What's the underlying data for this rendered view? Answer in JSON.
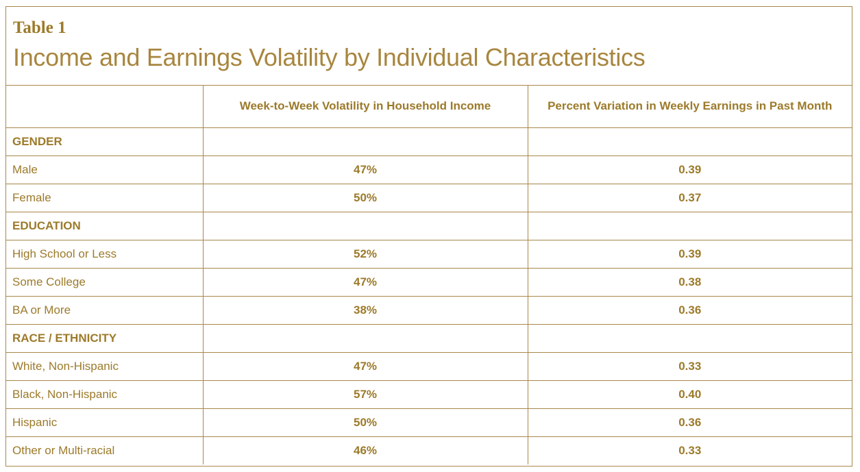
{
  "table_label": "Table 1",
  "title": "Income and Earnings Volatility by Individual Characteristics",
  "columns": {
    "col0": "",
    "col1": "Week-to-Week Volatility in Household Income",
    "col2": "Percent Variation in Weekly Earnings in Past Month"
  },
  "sections": [
    {
      "name": "GENDER",
      "rows": [
        {
          "label": "Male",
          "volatility": "47%",
          "variation": "0.39"
        },
        {
          "label": "Female",
          "volatility": "50%",
          "variation": "0.37"
        }
      ]
    },
    {
      "name": "EDUCATION",
      "rows": [
        {
          "label": "High School or Less",
          "volatility": "52%",
          "variation": "0.39"
        },
        {
          "label": "Some College",
          "volatility": "47%",
          "variation": "0.38"
        },
        {
          "label": "BA or More",
          "volatility": "38%",
          "variation": "0.36"
        }
      ]
    },
    {
      "name": "RACE / ETHNICITY",
      "rows": [
        {
          "label": "White, Non-Hispanic",
          "volatility": "47%",
          "variation": "0.33"
        },
        {
          "label": "Black, Non-Hispanic",
          "volatility": "57%",
          "variation": "0.40"
        },
        {
          "label": "Hispanic",
          "volatility": "50%",
          "variation": "0.36"
        },
        {
          "label": "Other or Multi-racial",
          "volatility": "46%",
          "variation": "0.33"
        }
      ]
    }
  ]
}
